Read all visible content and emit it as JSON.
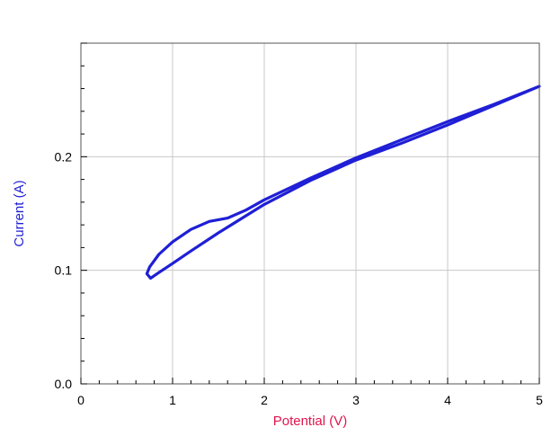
{
  "chart_data": {
    "type": "line",
    "title": "",
    "xlabel": "Potential (V)",
    "ylabel": "Current (A)",
    "xlim": [
      0,
      5
    ],
    "ylim": [
      0,
      0.3
    ],
    "x_ticks": [
      "0",
      "1",
      "2",
      "3",
      "4",
      "5"
    ],
    "y_ticks": [
      "0.0",
      "0.1",
      "0.2"
    ],
    "x_tick_values": [
      0,
      1,
      2,
      3,
      4,
      5
    ],
    "y_tick_values": [
      0.0,
      0.1,
      0.2
    ],
    "grid": true,
    "legend": "none",
    "colors": {
      "series": "#1f1fd6",
      "xlabel": "#e0154d",
      "ylabel": "#1f1fd6",
      "grid": "#c8c8c8",
      "axis": "#000000"
    },
    "series": [
      {
        "x": [
          5.0,
          4.5,
          4.0,
          3.5,
          3.0,
          2.5,
          2.0,
          1.5,
          1.2,
          1.0,
          0.85,
          0.76,
          0.72,
          0.75,
          0.85,
          1.0,
          1.2,
          1.4,
          1.6,
          1.8,
          2.0,
          2.5,
          3.0,
          3.5,
          4.0,
          4.5,
          5.0
        ],
        "y": [
          0.262,
          0.245,
          0.228,
          0.212,
          0.197,
          0.179,
          0.158,
          0.133,
          0.117,
          0.106,
          0.098,
          0.093,
          0.097,
          0.103,
          0.114,
          0.125,
          0.136,
          0.143,
          0.146,
          0.153,
          0.162,
          0.181,
          0.199,
          0.215,
          0.231,
          0.246,
          0.262
        ]
      }
    ]
  }
}
